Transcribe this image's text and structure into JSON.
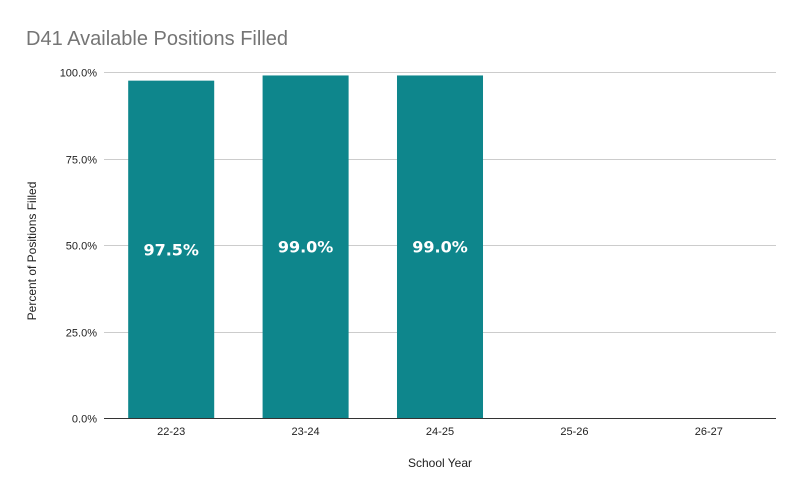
{
  "chart_data": {
    "type": "bar",
    "title": "D41 Available Positions Filled",
    "xlabel": "School Year",
    "ylabel": "Percent of Positions Filled",
    "categories": [
      "22-23",
      "23-24",
      "24-25",
      "25-26",
      "26-27"
    ],
    "values": [
      97.5,
      99.0,
      99.0,
      null,
      null
    ],
    "data_labels": [
      "97.5%",
      "99.0%",
      "99.0%",
      "",
      ""
    ],
    "ylim": [
      0,
      100
    ],
    "y_ticks": [
      0,
      25,
      50,
      75,
      100
    ],
    "y_tick_labels": [
      "0.0%",
      "25.0%",
      "50.0%",
      "75.0%",
      "100.0%"
    ],
    "grid": true,
    "legend": "none",
    "colors": {
      "bar": "#0e868c",
      "title": "#757575",
      "grid": "#cccccc"
    }
  }
}
